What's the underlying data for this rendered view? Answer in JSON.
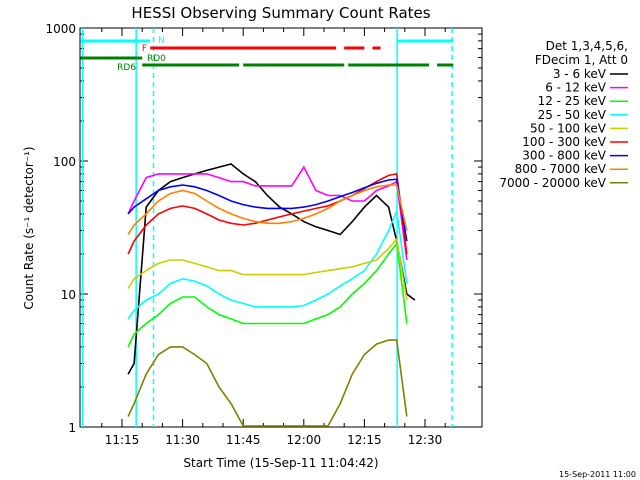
{
  "chart_data": {
    "type": "line",
    "title": "HESSI Observing Summary Count Rates",
    "xlabel": "Start Time (15-Sep-11 11:04:42)",
    "ylabel": "Count Rate (s⁻¹ detector⁻¹)",
    "y_scale": "log",
    "ylim": [
      1,
      1000
    ],
    "y_ticks": [
      1,
      10,
      100,
      1000
    ],
    "xlim_minutes": [
      4.7,
      47.0
    ],
    "x_ticks": [
      {
        "m": 15,
        "label": "11:15"
      },
      {
        "m": 30,
        "label": "11:30"
      },
      {
        "m": 45,
        "label": "11:45"
      },
      {
        "m": 60,
        "label": "12:00"
      },
      {
        "m": 75,
        "label": "12:15"
      },
      {
        "m": 90,
        "label": "12:30"
      }
    ],
    "grid": false,
    "legend_position": "right",
    "legend_header": [
      "Det 1,3,4,5,6,",
      "FDecim 1, Att 0"
    ],
    "series": [
      {
        "name": "3 - 6 keV",
        "color": "#000000",
        "t": [
          16.5,
          18,
          21,
          24,
          27,
          30,
          33,
          36,
          39,
          42,
          45,
          48,
          51,
          54,
          57,
          60,
          63,
          66,
          69,
          72,
          75,
          78,
          81,
          83,
          85.5,
          87.5
        ],
        "v": [
          2.5,
          3,
          45,
          60,
          70,
          75,
          80,
          85,
          90,
          95,
          80,
          70,
          55,
          45,
          40,
          35,
          32,
          30,
          28,
          35,
          45,
          55,
          45,
          25,
          10,
          9
        ]
      },
      {
        "name": "6 - 12 keV",
        "color": "#ff00ff",
        "t": [
          16.5,
          18,
          21,
          24,
          27,
          30,
          33,
          36,
          39,
          42,
          45,
          48,
          51,
          54,
          57,
          60,
          63,
          66,
          69,
          72,
          75,
          78,
          81,
          83,
          85.5
        ],
        "v": [
          40,
          50,
          75,
          80,
          80,
          80,
          80,
          80,
          75,
          70,
          70,
          65,
          65,
          65,
          65,
          90,
          60,
          55,
          55,
          50,
          50,
          60,
          65,
          70,
          18
        ]
      },
      {
        "name": "12 - 25 keV",
        "color": "#00ff00",
        "t": [
          16.5,
          18,
          21,
          24,
          27,
          30,
          33,
          36,
          39,
          42,
          45,
          48,
          51,
          54,
          57,
          60,
          63,
          66,
          69,
          72,
          75,
          78,
          81,
          83,
          85.5
        ],
        "v": [
          4,
          5,
          6,
          7,
          8.5,
          9.5,
          9.5,
          8,
          7,
          6.5,
          6,
          6,
          6,
          6,
          6,
          6,
          6.5,
          7,
          8,
          10,
          12,
          15,
          20,
          24,
          6
        ]
      },
      {
        "name": "25 - 50 keV",
        "color": "#00ffff",
        "t": [
          16.5,
          18,
          21,
          24,
          27,
          30,
          33,
          36,
          39,
          42,
          45,
          48,
          51,
          54,
          57,
          60,
          63,
          66,
          69,
          72,
          75,
          78,
          81,
          83,
          85.5
        ],
        "v": [
          6.5,
          7.5,
          9,
          10,
          12,
          13,
          12.5,
          11.5,
          10,
          9,
          8.5,
          8,
          8,
          8,
          8,
          8.2,
          9,
          10,
          11.5,
          13,
          15,
          20,
          30,
          42,
          12
        ]
      },
      {
        "name": "50 - 100 keV",
        "color": "#cccc00",
        "t": [
          16.5,
          18,
          21,
          24,
          27,
          30,
          33,
          36,
          39,
          42,
          45,
          48,
          51,
          54,
          57,
          60,
          63,
          66,
          69,
          72,
          75,
          78,
          81,
          83,
          85.5
        ],
        "v": [
          11,
          13,
          15,
          17,
          18,
          18,
          17,
          16,
          15,
          15,
          14,
          14,
          14,
          14,
          14,
          14,
          14.5,
          15,
          15.5,
          16,
          17,
          18,
          22,
          26,
          9
        ]
      },
      {
        "name": "100 - 300 keV",
        "color": "#ff0000",
        "t": [
          16.5,
          18,
          21,
          24,
          27,
          30,
          33,
          36,
          39,
          42,
          45,
          48,
          51,
          54,
          57,
          60,
          63,
          66,
          69,
          72,
          75,
          78,
          81,
          83,
          85.5
        ],
        "v": [
          20,
          25,
          33,
          40,
          44,
          46,
          44,
          40,
          36,
          34,
          33,
          34,
          36,
          38,
          40,
          42,
          44,
          46,
          50,
          55,
          62,
          70,
          78,
          80,
          20
        ]
      },
      {
        "name": "300 - 800 keV",
        "color": "#0000ff",
        "t": [
          16.5,
          18,
          21,
          24,
          27,
          30,
          33,
          36,
          39,
          42,
          45,
          48,
          51,
          54,
          57,
          60,
          63,
          66,
          69,
          72,
          75,
          78,
          81,
          83,
          85.5
        ],
        "v": [
          40,
          45,
          52,
          60,
          64,
          66,
          64,
          60,
          55,
          50,
          47,
          45,
          44,
          44,
          44,
          45,
          47,
          50,
          54,
          58,
          63,
          68,
          72,
          73,
          25
        ]
      },
      {
        "name": "800 - 7000 keV",
        "color": "#ff8000",
        "t": [
          16.5,
          18,
          21,
          24,
          27,
          30,
          33,
          36,
          39,
          42,
          45,
          48,
          51,
          54,
          57,
          60,
          63,
          66,
          69,
          72,
          75,
          78,
          81,
          83,
          85.5
        ],
        "v": [
          28,
          33,
          40,
          50,
          57,
          60,
          57,
          50,
          44,
          40,
          37,
          35,
          34,
          34,
          35,
          37,
          40,
          44,
          50,
          55,
          60,
          64,
          66,
          66,
          30
        ]
      },
      {
        "name": "7000 - 20000 keV",
        "color": "#808000",
        "t": [
          16.5,
          18,
          21,
          24,
          27,
          30,
          33,
          36,
          39,
          42,
          45,
          48,
          51,
          54,
          57,
          60,
          63,
          66,
          69,
          72,
          75,
          78,
          81,
          83,
          85.5
        ],
        "v": [
          1.2,
          1.5,
          2.5,
          3.5,
          4,
          4,
          3.5,
          3,
          2,
          1.5,
          1,
          1,
          1,
          1,
          1,
          1,
          1,
          1,
          1.5,
          2.5,
          3.5,
          4.2,
          4.5,
          4.5,
          1.2
        ]
      }
    ],
    "state_bars": [
      {
        "label": "N",
        "color": "#00ffff",
        "level": 1,
        "segments": [
          [
            4.7,
            22
          ],
          [
            83,
            97
          ]
        ]
      },
      {
        "label": "F",
        "color": "#ff0000",
        "level": 2,
        "segments": [
          [
            22,
            68
          ],
          [
            70,
            75
          ],
          [
            77,
            79
          ]
        ]
      },
      {
        "label": "RD0",
        "color": "#008000",
        "level": 3,
        "segments": [
          [
            4.7,
            20
          ]
        ]
      },
      {
        "label": "RD6",
        "color": "#008000",
        "level": 4,
        "segments": [
          [
            20,
            44
          ],
          [
            45,
            70
          ],
          [
            71,
            91
          ],
          [
            93,
            97
          ]
        ]
      }
    ],
    "vertical_lines": [
      {
        "m": 5.2,
        "color": "#00ffff",
        "style": "solid"
      },
      {
        "m": 18.5,
        "color": "#00ffff",
        "style": "solid"
      },
      {
        "m": 22.8,
        "color": "#00ffff",
        "style": "dashed"
      },
      {
        "m": 83.1,
        "color": "#00ffff",
        "style": "solid"
      },
      {
        "m": 96.7,
        "color": "#00ffff",
        "style": "dashed"
      }
    ],
    "footer": "15-Sep-2011 11:00"
  }
}
